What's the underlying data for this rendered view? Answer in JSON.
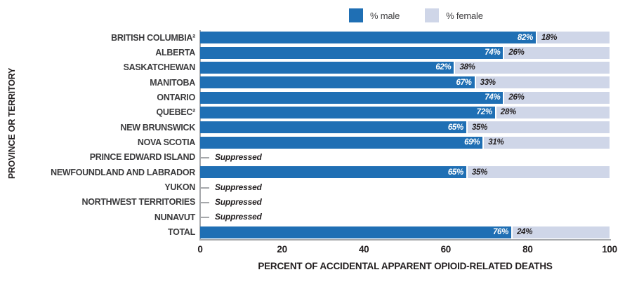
{
  "legend": {
    "male_label": "% male",
    "female_label": "% female"
  },
  "axis": {
    "y_title": "PROVINCE OR TERRITORY",
    "x_title": "PERCENT OF ACCIDENTAL APPARENT OPIOID-RELATED DEATHS",
    "ticks": [
      0,
      20,
      40,
      60,
      80,
      100
    ]
  },
  "suppressed_label": "Suppressed",
  "colors": {
    "male": "#1f6fb4",
    "female": "#cfd6e8",
    "axis": "#a6a8ab"
  },
  "chart_data": {
    "type": "bar",
    "orientation": "horizontal",
    "stacked": true,
    "title": "",
    "xlabel": "PERCENT OF ACCIDENTAL APPARENT OPIOID-RELATED DEATHS",
    "ylabel": "PROVINCE OR TERRITORY",
    "xlim": [
      0,
      100
    ],
    "legend_position": "top",
    "categories": [
      "BRITISH COLUMBIA²",
      "ALBERTA",
      "SASKATCHEWAN",
      "MANITOBA",
      "ONTARIO",
      "QUEBEC²",
      "NEW BRUNSWICK",
      "NOVA SCOTIA",
      "PRINCE EDWARD ISLAND",
      "NEWFOUNDLAND AND LABRADOR",
      "YUKON",
      "NORTHWEST TERRITORIES",
      "NUNAVUT",
      "TOTAL"
    ],
    "series": [
      {
        "name": "% male",
        "values": [
          82,
          74,
          62,
          67,
          74,
          72,
          65,
          69,
          null,
          65,
          null,
          null,
          null,
          76
        ]
      },
      {
        "name": "% female",
        "values": [
          18,
          26,
          38,
          33,
          26,
          28,
          35,
          31,
          null,
          35,
          null,
          null,
          null,
          24
        ]
      }
    ],
    "suppressed_categories": [
      "PRINCE EDWARD ISLAND",
      "YUKON",
      "NORTHWEST TERRITORIES",
      "NUNAVUT"
    ]
  }
}
